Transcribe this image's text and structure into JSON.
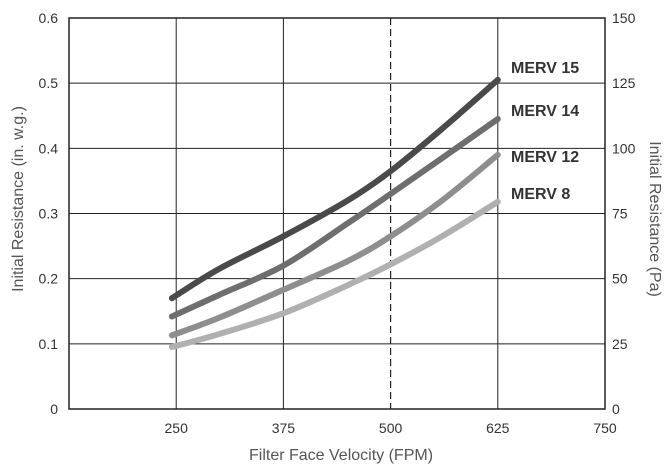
{
  "chart_data": {
    "type": "line",
    "xlabel": "Filter Face Velocity (FPM)",
    "ylabel": "Initial Resistance (in. w.g.)",
    "y2label": "Initial Resistance (Pa)",
    "xlim": [
      125,
      750
    ],
    "ylim": [
      0,
      0.6
    ],
    "y2lim": [
      0,
      150
    ],
    "x_ticks": [
      "250",
      "375",
      "500",
      "625",
      "750"
    ],
    "y_ticks": [
      "0",
      "0.1",
      "0.2",
      "0.3",
      "0.4",
      "0.5",
      "0.6"
    ],
    "y2_ticks": [
      "0",
      "25",
      "50",
      "75",
      "100",
      "125",
      "150"
    ],
    "grid": true,
    "reference_line": {
      "x": 500,
      "style": "dashed"
    },
    "series": [
      {
        "name": "MERV 15",
        "color": "#4a4a4a",
        "x": [
          245,
          300,
          375,
          450,
          500,
          560,
          625
        ],
        "y": [
          0.17,
          0.215,
          0.265,
          0.32,
          0.365,
          0.43,
          0.505
        ]
      },
      {
        "name": "MERV 14",
        "color": "#6e6e6e",
        "x": [
          245,
          300,
          375,
          450,
          500,
          560,
          625
        ],
        "y": [
          0.142,
          0.175,
          0.22,
          0.285,
          0.33,
          0.385,
          0.445
        ]
      },
      {
        "name": "MERV 12",
        "color": "#8e8e8e",
        "x": [
          245,
          300,
          375,
          450,
          500,
          560,
          625
        ],
        "y": [
          0.113,
          0.14,
          0.183,
          0.227,
          0.265,
          0.32,
          0.39
        ]
      },
      {
        "name": "MERV 8",
        "color": "#b0b0b0",
        "x": [
          245,
          300,
          375,
          450,
          500,
          560,
          625
        ],
        "y": [
          0.095,
          0.115,
          0.147,
          0.19,
          0.222,
          0.265,
          0.318
        ]
      }
    ]
  }
}
